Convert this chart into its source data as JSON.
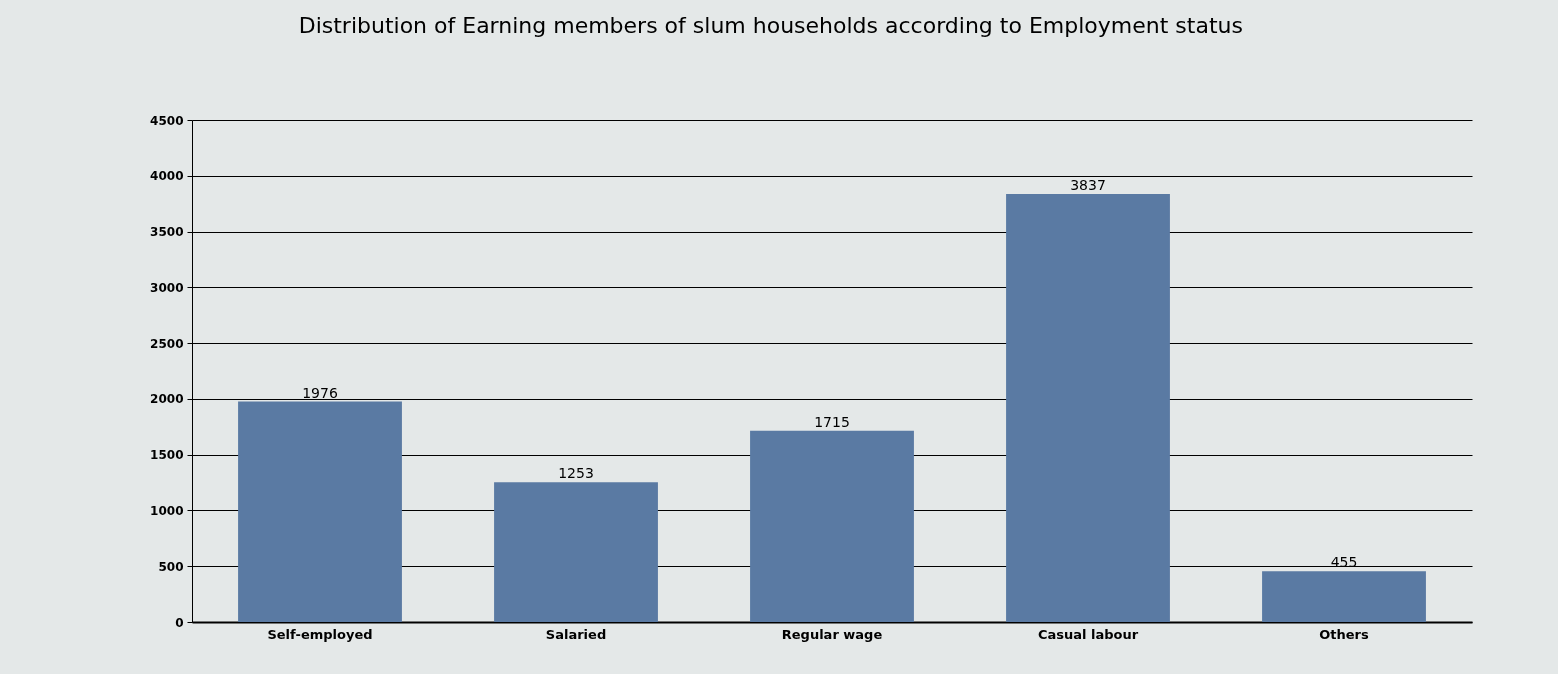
{
  "chart_data": {
    "type": "bar",
    "title": "Distribution of Earning members of slum households according to Employment status",
    "categories": [
      "Self-employed",
      "Salaried",
      "Regular wage",
      "Casual labour",
      "Others"
    ],
    "values": [
      1976,
      1253,
      1715,
      3837,
      455
    ],
    "color": "#5a7aa3",
    "ylim": [
      0,
      4500
    ],
    "yticks": [
      0,
      500,
      1000,
      1500,
      2000,
      2500,
      3000,
      3500,
      4000,
      4500
    ],
    "grid": "y",
    "data_labels": true
  }
}
